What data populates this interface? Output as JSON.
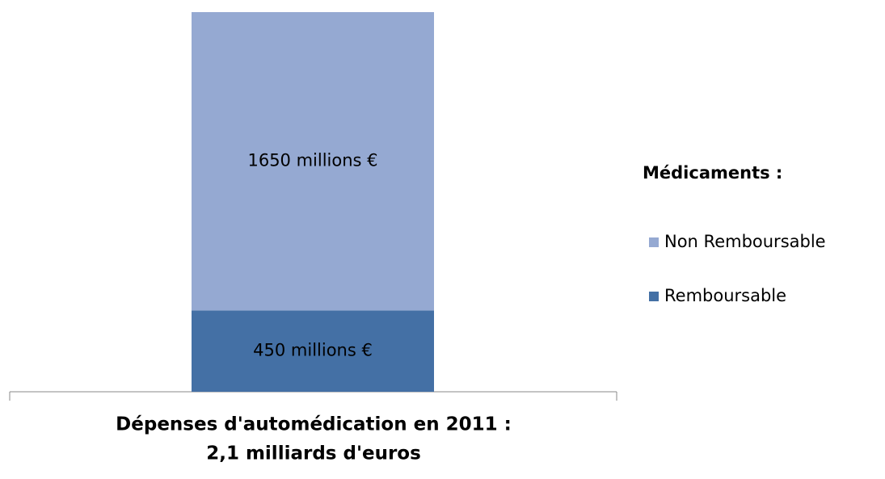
{
  "chart_data": {
    "type": "bar",
    "stacked": true,
    "categories": [
      [
        "Dépenses d'automédication en 2011 :",
        "2,1 milliards d'euros"
      ]
    ],
    "series": [
      {
        "name": "Remboursable",
        "color": "#4470a5",
        "values": [
          450
        ],
        "value_labels": [
          "450 millions €"
        ]
      },
      {
        "name": "Non Remboursable",
        "color": "#95a9d2",
        "values": [
          1650
        ],
        "value_labels": [
          "1650 millions €"
        ]
      }
    ],
    "ylim": [
      0,
      2100
    ],
    "legend_title": "Médicaments :",
    "legend": "right"
  }
}
